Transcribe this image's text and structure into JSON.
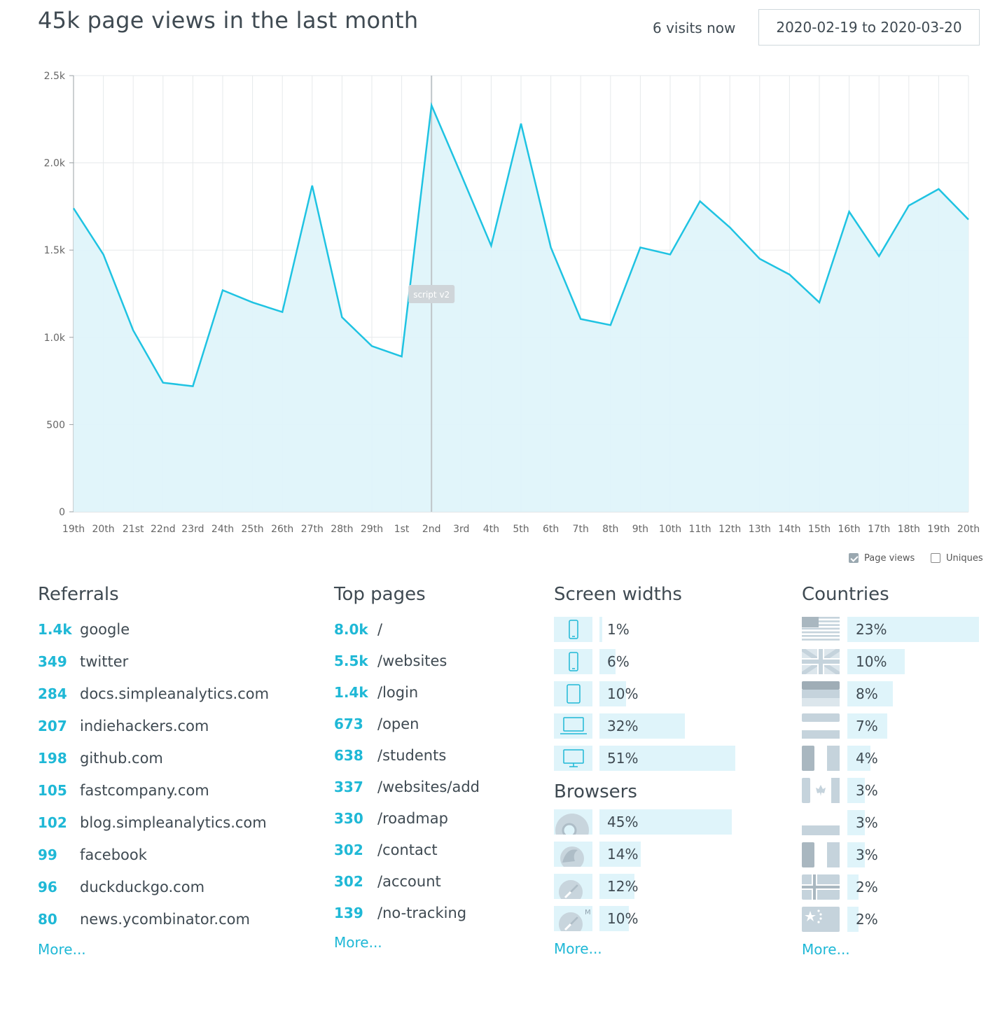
{
  "header": {
    "title": "45k page views in the last month",
    "visits_now": "6 visits now",
    "date_range": "2020-02-19 to 2020-03-20"
  },
  "chart_data": {
    "type": "area",
    "x": [
      "19th",
      "20th",
      "21st",
      "22nd",
      "23rd",
      "24th",
      "25th",
      "26th",
      "27th",
      "28th",
      "29th",
      "1st",
      "2nd",
      "3rd",
      "4th",
      "5th",
      "6th",
      "7th",
      "8th",
      "9th",
      "10th",
      "11th",
      "12th",
      "13th",
      "14th",
      "15th",
      "16th",
      "17th",
      "18th",
      "19th",
      "20th"
    ],
    "series": [
      {
        "values": [
          1740,
          1475,
          1040,
          740,
          720,
          1270,
          1200,
          1145,
          1870,
          1115,
          950,
          890,
          2330,
          1930,
          1525,
          2225,
          1515,
          1105,
          1070,
          1515,
          1475,
          1780,
          1630,
          1450,
          1360,
          1200,
          1720,
          1465,
          1755,
          1850,
          1675
        ],
        "color": "#1fc3e2"
      }
    ],
    "ylim": [
      0,
      2500
    ],
    "yticks": [
      "0",
      "500",
      "1.0k",
      "1.5k",
      "2.0k",
      "2.5k"
    ],
    "grid": true,
    "annotation": {
      "label": "script v2",
      "at": "2nd"
    },
    "legend": [
      {
        "label": "Page views",
        "checked": true
      },
      {
        "label": "Uniques",
        "checked": false
      }
    ]
  },
  "referrals": {
    "title": "Referrals",
    "items": [
      {
        "count": "1.4k",
        "name": "google"
      },
      {
        "count": "349",
        "name": "twitter"
      },
      {
        "count": "284",
        "name": "docs.simpleanalytics.com"
      },
      {
        "count": "207",
        "name": "indiehackers.com"
      },
      {
        "count": "198",
        "name": "github.com"
      },
      {
        "count": "105",
        "name": "fastcompany.com"
      },
      {
        "count": "102",
        "name": "blog.simpleanalytics.com"
      },
      {
        "count": "99",
        "name": "facebook"
      },
      {
        "count": "96",
        "name": "duckduckgo.com"
      },
      {
        "count": "80",
        "name": "news.ycombinator.com"
      }
    ],
    "more": "More..."
  },
  "top_pages": {
    "title": "Top pages",
    "items": [
      {
        "count": "8.0k",
        "path": "/"
      },
      {
        "count": "5.5k",
        "path": "/websites"
      },
      {
        "count": "1.4k",
        "path": "/login"
      },
      {
        "count": "673",
        "path": "/open"
      },
      {
        "count": "638",
        "path": "/students"
      },
      {
        "count": "337",
        "path": "/websites/add"
      },
      {
        "count": "330",
        "path": "/roadmap"
      },
      {
        "count": "302",
        "path": "/contact"
      },
      {
        "count": "302",
        "path": "/account"
      },
      {
        "count": "139",
        "path": "/no-tracking"
      }
    ],
    "more": "More..."
  },
  "screen_widths": {
    "title": "Screen widths",
    "items": [
      {
        "icon": "small-phone-icon",
        "pct": "1%",
        "value": 0.01
      },
      {
        "icon": "phone-icon",
        "pct": "6%",
        "value": 0.06
      },
      {
        "icon": "tablet-icon",
        "pct": "10%",
        "value": 0.1
      },
      {
        "icon": "laptop-icon",
        "pct": "32%",
        "value": 0.32
      },
      {
        "icon": "desktop-icon",
        "pct": "51%",
        "value": 0.51
      }
    ]
  },
  "browsers": {
    "title": "Browsers",
    "items": [
      {
        "icon": "chrome-icon",
        "pct": "45%",
        "value": 0.45
      },
      {
        "icon": "firefox-icon",
        "pct": "14%",
        "value": 0.14
      },
      {
        "icon": "safari-icon",
        "pct": "12%",
        "value": 0.12
      },
      {
        "icon": "mobile-safari-icon",
        "pct": "10%",
        "value": 0.1
      }
    ],
    "more": "More..."
  },
  "countries": {
    "title": "Countries",
    "items": [
      {
        "flag": "us-flag-icon",
        "pct": "23%",
        "value": 0.23
      },
      {
        "flag": "uk-flag-icon",
        "pct": "10%",
        "value": 0.1
      },
      {
        "flag": "de-flag-icon",
        "pct": "8%",
        "value": 0.08
      },
      {
        "flag": "nl-flag-icon",
        "pct": "7%",
        "value": 0.07
      },
      {
        "flag": "fr-flag-icon",
        "pct": "4%",
        "value": 0.04
      },
      {
        "flag": "ca-flag-icon",
        "pct": "3%",
        "value": 0.03
      },
      {
        "flag": "jp-flag-icon",
        "pct": "3%",
        "value": 0.03
      },
      {
        "flag": "it-flag-icon",
        "pct": "3%",
        "value": 0.03
      },
      {
        "flag": "no-flag-icon",
        "pct": "2%",
        "value": 0.02
      },
      {
        "flag": "cn-flag-icon",
        "pct": "2%",
        "value": 0.02
      }
    ],
    "more": "More..."
  },
  "colors": {
    "accent": "#1fb8d6",
    "line": "#1fc3e2",
    "area": "#dff4fa",
    "bar": "#dff4fa",
    "flag": "#c5d3dc"
  }
}
